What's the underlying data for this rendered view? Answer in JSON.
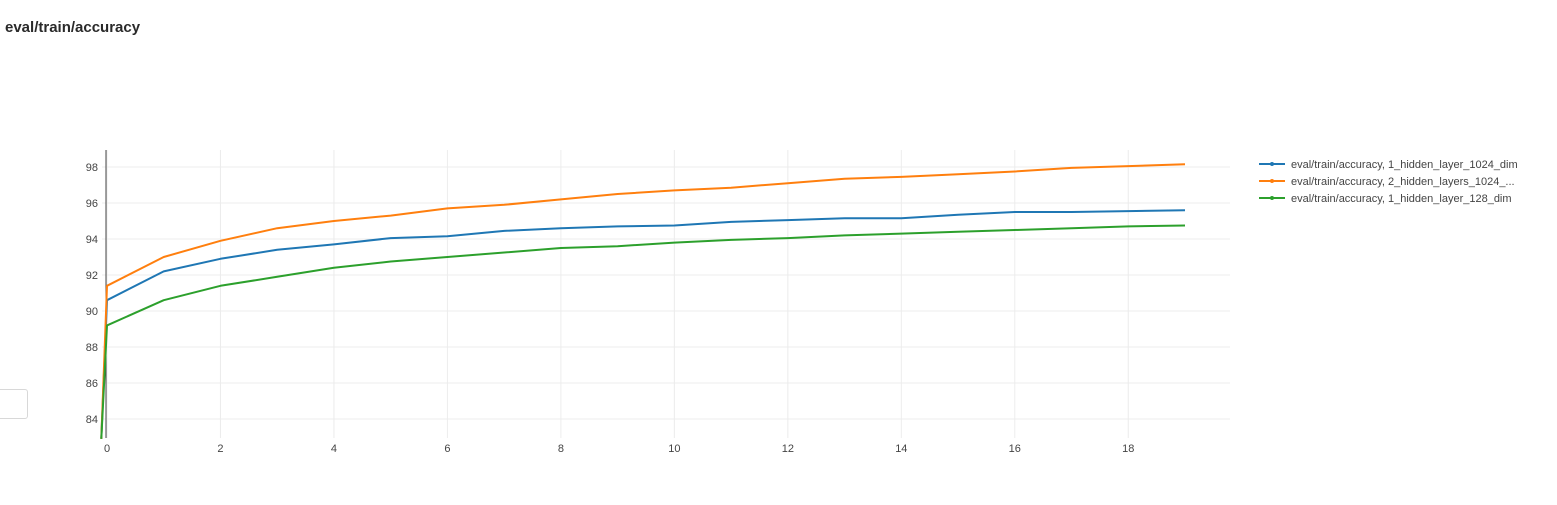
{
  "panel": {
    "title": "eval/train/accuracy"
  },
  "chart_data": {
    "type": "line",
    "title": "",
    "xlabel": "",
    "ylabel": "",
    "xlim": [
      -0.1,
      19.5
    ],
    "ylim": [
      82.9,
      98.9
    ],
    "x_ticks": [
      0,
      2,
      4,
      6,
      8,
      10,
      12,
      14,
      16,
      18
    ],
    "y_ticks": [
      84,
      86,
      88,
      90,
      92,
      94,
      96,
      98
    ],
    "grid": true,
    "legend_position": "right",
    "series": [
      {
        "name": "eval/train/accuracy, 1_hidden_layer_1024_dim",
        "color": "#1f77b4",
        "x": [
          -0.1,
          0,
          1,
          2,
          3,
          4,
          5,
          6,
          7,
          8,
          9,
          10,
          11,
          12,
          13,
          14,
          15,
          16,
          17,
          18,
          19
        ],
        "y": [
          82.9,
          90.6,
          92.2,
          92.9,
          93.4,
          93.7,
          94.05,
          94.15,
          94.45,
          94.6,
          94.7,
          94.75,
          94.95,
          95.05,
          95.15,
          95.15,
          95.35,
          95.5,
          95.5,
          95.55,
          95.6
        ]
      },
      {
        "name": "eval/train/accuracy, 2_hidden_layers_1024_...",
        "color": "#ff7f0e",
        "x": [
          -0.1,
          0,
          1,
          2,
          3,
          4,
          5,
          6,
          7,
          8,
          9,
          10,
          11,
          12,
          13,
          14,
          15,
          16,
          17,
          18,
          19
        ],
        "y": [
          82.9,
          91.4,
          93.0,
          93.9,
          94.6,
          95.0,
          95.3,
          95.7,
          95.9,
          96.2,
          96.5,
          96.7,
          96.85,
          97.1,
          97.35,
          97.45,
          97.6,
          97.75,
          97.95,
          98.05,
          98.15
        ]
      },
      {
        "name": "eval/train/accuracy, 1_hidden_layer_128_dim",
        "color": "#2ca02c",
        "x": [
          -0.1,
          0,
          1,
          2,
          3,
          4,
          5,
          6,
          7,
          8,
          9,
          10,
          11,
          12,
          13,
          14,
          15,
          16,
          17,
          18,
          19
        ],
        "y": [
          82.9,
          89.2,
          90.6,
          91.4,
          91.9,
          92.4,
          92.75,
          93.0,
          93.25,
          93.5,
          93.6,
          93.8,
          93.95,
          94.05,
          94.2,
          94.3,
          94.4,
          94.5,
          94.6,
          94.7,
          94.75
        ]
      }
    ]
  }
}
